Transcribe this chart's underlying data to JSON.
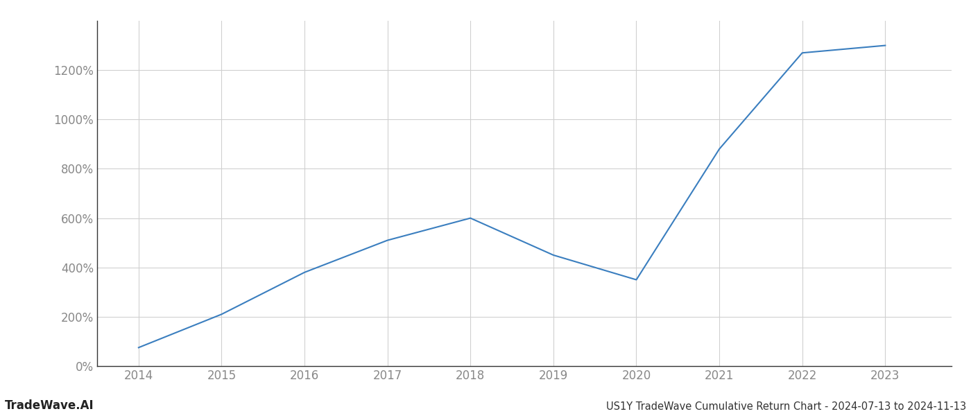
{
  "x": [
    2014,
    2015,
    2016,
    2017,
    2018,
    2019,
    2020,
    2021,
    2022,
    2023
  ],
  "y": [
    75,
    210,
    380,
    510,
    600,
    450,
    350,
    880,
    1270,
    1300
  ],
  "line_color": "#3a7ebf",
  "line_width": 1.5,
  "title": "US1Y TradeWave Cumulative Return Chart - 2024-07-13 to 2024-11-13",
  "watermark": "TradeWave.AI",
  "xlim": [
    2013.5,
    2023.8
  ],
  "ylim": [
    0,
    1400
  ],
  "yticks": [
    0,
    200,
    400,
    600,
    800,
    1000,
    1200
  ],
  "xticks": [
    2014,
    2015,
    2016,
    2017,
    2018,
    2019,
    2020,
    2021,
    2022,
    2023
  ],
  "bg_color": "#ffffff",
  "grid_color": "#d0d0d0",
  "tick_label_color": "#888888",
  "title_color": "#333333",
  "watermark_color": "#222222",
  "title_fontsize": 10.5,
  "tick_fontsize": 12,
  "watermark_fontsize": 12
}
